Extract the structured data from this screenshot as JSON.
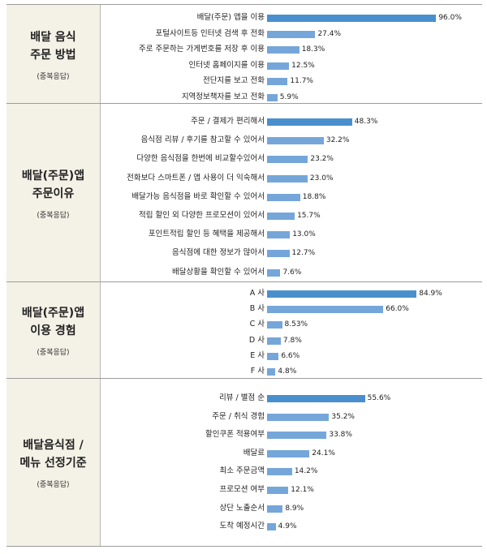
{
  "chart_data": [
    {
      "type": "bar",
      "title": "배달 음식\n주문 방법",
      "subtitle": "(중복응답)",
      "categories": [
        "배달(주문) 앱을 이용",
        "포털사이트등 인터넷 검색 후 전화",
        "주로 주문하는 가게번호를 저장 후 이용",
        "인터넷 홈페이지를 이용",
        "전단지를 보고 전화",
        "지역정보책자를 보고 전화"
      ],
      "values": [
        96.0,
        27.4,
        18.3,
        12.5,
        11.7,
        5.9
      ],
      "value_labels": [
        "96.0%",
        "27.4%",
        "18.3%",
        "12.5%",
        "11.7%",
        "5.9%"
      ]
    },
    {
      "type": "bar",
      "title": "배달(주문)앱\n주문이유",
      "subtitle": "(중복응답)",
      "categories": [
        "주문 / 결제가 편리해서",
        "음식점 리뷰 / 후기를 참고할 수 있어서",
        "다양한 음식점을 한번에 비교할수있어서",
        "전화보다 스마트폰 / 앱 사용이 더 익숙해서",
        "배달가능 음식점을 바로 확인할 수 있어서",
        "적립 할인 외 다양한 프로모션이 있어서",
        "포인트적립 할인 등 혜택을 제공해서",
        "음식점에 대한 정보가 많아서",
        "배달상황을 확인할 수 있어서"
      ],
      "values": [
        48.3,
        32.2,
        23.2,
        23.0,
        18.8,
        15.7,
        13.0,
        12.7,
        7.6
      ],
      "value_labels": [
        "48.3%",
        "32.2%",
        "23.2%",
        "23.0%",
        "18.8%",
        "15.7%",
        "13.0%",
        "12.7%",
        "7.6%"
      ]
    },
    {
      "type": "bar",
      "title": "배달(주문)앱\n이용 경험",
      "subtitle": "(중복응답)",
      "categories": [
        "A 사",
        "B 사",
        "C 사",
        "D 사",
        "E 사",
        "F 사"
      ],
      "values": [
        84.9,
        66.0,
        8.53,
        7.8,
        6.6,
        4.8
      ],
      "value_labels": [
        "84.9%",
        "66.0%",
        "8.53%",
        "7.8%",
        "6.6%",
        "4.8%"
      ]
    },
    {
      "type": "bar",
      "title": "배달음식점 /\n메뉴 선정기준",
      "subtitle": "(중복응답)",
      "categories": [
        "리뷰 / 별점 순",
        "주문 / 취식 경험",
        "할인쿠폰 적용여부",
        "배달료",
        "최소 주문금액",
        "프로모션 여부",
        "상단 노출순서",
        "도착 예정시간"
      ],
      "values": [
        55.6,
        35.2,
        33.8,
        24.1,
        14.2,
        12.1,
        8.9,
        4.9
      ],
      "value_labels": [
        "55.6%",
        "35.2%",
        "33.8%",
        "24.1%",
        "14.2%",
        "12.1%",
        "8.9%",
        "4.9%"
      ]
    }
  ],
  "colors": {
    "bar": "#75a6d9",
    "bar_top": "#4a8fcd",
    "label_bg": "#f4f1e6",
    "rule": "#9c9c9c"
  }
}
